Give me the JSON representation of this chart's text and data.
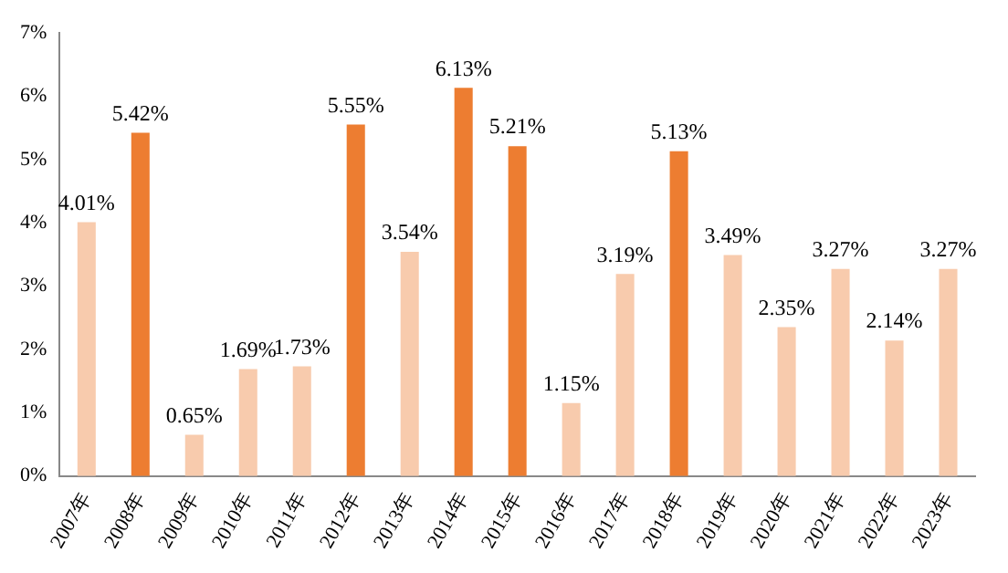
{
  "chart_data": {
    "type": "bar",
    "categories": [
      "2007年",
      "2008年",
      "2009年",
      "2010年",
      "2011年",
      "2012年",
      "2013年",
      "2014年",
      "2015年",
      "2016年",
      "2017年",
      "2018年",
      "2019年",
      "2020年",
      "2021年",
      "2022年",
      "2023年"
    ],
    "values": [
      4.01,
      5.42,
      0.65,
      1.69,
      1.73,
      5.55,
      3.54,
      6.13,
      5.21,
      1.15,
      3.19,
      5.13,
      3.49,
      2.35,
      3.27,
      2.14,
      3.27
    ],
    "colors": [
      "#f8cbad",
      "#ed7d31",
      "#f8cbad",
      "#f8cbad",
      "#f8cbad",
      "#ed7d31",
      "#f8cbad",
      "#ed7d31",
      "#ed7d31",
      "#f8cbad",
      "#f8cbad",
      "#ed7d31",
      "#f8cbad",
      "#f8cbad",
      "#f8cbad",
      "#f8cbad",
      "#f8cbad"
    ],
    "value_labels": [
      "4.01%",
      "5.42%",
      "0.65%",
      "1.69%",
      "1.73%",
      "5.55%",
      "3.54%",
      "6.13%",
      "5.21%",
      "1.15%",
      "3.19%",
      "5.13%",
      "3.49%",
      "2.35%",
      "3.27%",
      "2.14%",
      "3.27%"
    ],
    "ylim": [
      0,
      7
    ],
    "yticks": [
      {
        "value": 0,
        "label": "0%"
      },
      {
        "value": 1,
        "label": "1%"
      },
      {
        "value": 2,
        "label": "2%"
      },
      {
        "value": 3,
        "label": "3%"
      },
      {
        "value": 4,
        "label": "4%"
      },
      {
        "value": 5,
        "label": "5%"
      },
      {
        "value": 6,
        "label": "6%"
      },
      {
        "value": 7,
        "label": "7%"
      }
    ],
    "grid": false,
    "legend": false
  }
}
